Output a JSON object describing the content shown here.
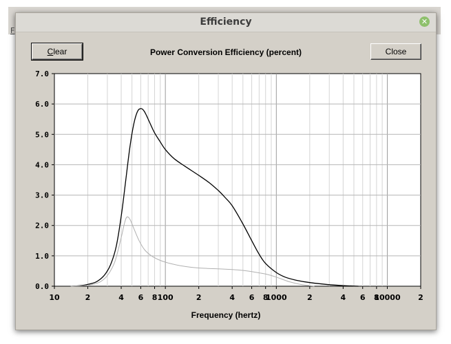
{
  "window": {
    "title": "Efficiency",
    "close_icon": "close-icon",
    "background_title": "...",
    "background_menu_letter": "F"
  },
  "toolbar": {
    "clear_label_first": "C",
    "clear_label_rest": "lear",
    "close_label": "Close"
  },
  "chart_data": {
    "type": "line",
    "title": "Power Conversion Efficiency (percent)",
    "xlabel": "Frequency (hertz)",
    "ylabel": "",
    "x_scale": "log",
    "xlim": [
      10,
      20000
    ],
    "ylim": [
      0,
      7
    ],
    "grid": true,
    "y_ticks": [
      "0.0",
      "1.0",
      "2.0",
      "3.0",
      "4.0",
      "5.0",
      "6.0",
      "7.0"
    ],
    "x_ticks": [
      {
        "value": 10,
        "label": "10"
      },
      {
        "value": 20,
        "label": "2"
      },
      {
        "value": 40,
        "label": "4"
      },
      {
        "value": 60,
        "label": "6"
      },
      {
        "value": 80,
        "label": "8"
      },
      {
        "value": 100,
        "label": "100"
      },
      {
        "value": 200,
        "label": "2"
      },
      {
        "value": 400,
        "label": "4"
      },
      {
        "value": 600,
        "label": "6"
      },
      {
        "value": 800,
        "label": "8"
      },
      {
        "value": 1000,
        "label": "1000"
      },
      {
        "value": 2000,
        "label": "2"
      },
      {
        "value": 4000,
        "label": "4"
      },
      {
        "value": 6000,
        "label": "6"
      },
      {
        "value": 8000,
        "label": "8"
      },
      {
        "value": 10000,
        "label": "10000"
      },
      {
        "value": 20000,
        "label": "2"
      }
    ],
    "series": [
      {
        "color": "#000000",
        "x": [
          14,
          17,
          20,
          24,
          28,
          32,
          36,
          40,
          44,
          48,
          52,
          56,
          60,
          64,
          68,
          72,
          80,
          90,
          100,
          120,
          150,
          200,
          250,
          300,
          350,
          400,
          500,
          600,
          700,
          800,
          1000,
          1200,
          1500,
          2000,
          3000,
          4000,
          5500
        ],
        "y": [
          0.0,
          0.02,
          0.06,
          0.15,
          0.35,
          0.7,
          1.3,
          2.3,
          3.5,
          4.6,
          5.35,
          5.75,
          5.85,
          5.78,
          5.6,
          5.4,
          5.05,
          4.75,
          4.5,
          4.2,
          3.95,
          3.65,
          3.4,
          3.15,
          2.9,
          2.65,
          2.05,
          1.5,
          1.05,
          0.75,
          0.45,
          0.3,
          0.2,
          0.12,
          0.05,
          0.02,
          0.0
        ]
      },
      {
        "color": "#b0b0b0",
        "x": [
          14,
          18,
          22,
          26,
          30,
          35,
          40,
          43,
          45,
          48,
          52,
          58,
          65,
          75,
          90,
          110,
          150,
          200,
          300,
          400,
          500,
          600,
          800,
          1000,
          1300,
          1700,
          2200
        ],
        "y": [
          0.0,
          0.02,
          0.06,
          0.15,
          0.35,
          0.8,
          1.6,
          2.1,
          2.28,
          2.2,
          1.9,
          1.5,
          1.2,
          1.0,
          0.85,
          0.75,
          0.65,
          0.6,
          0.57,
          0.55,
          0.52,
          0.48,
          0.4,
          0.3,
          0.15,
          0.05,
          0.0
        ]
      }
    ]
  }
}
